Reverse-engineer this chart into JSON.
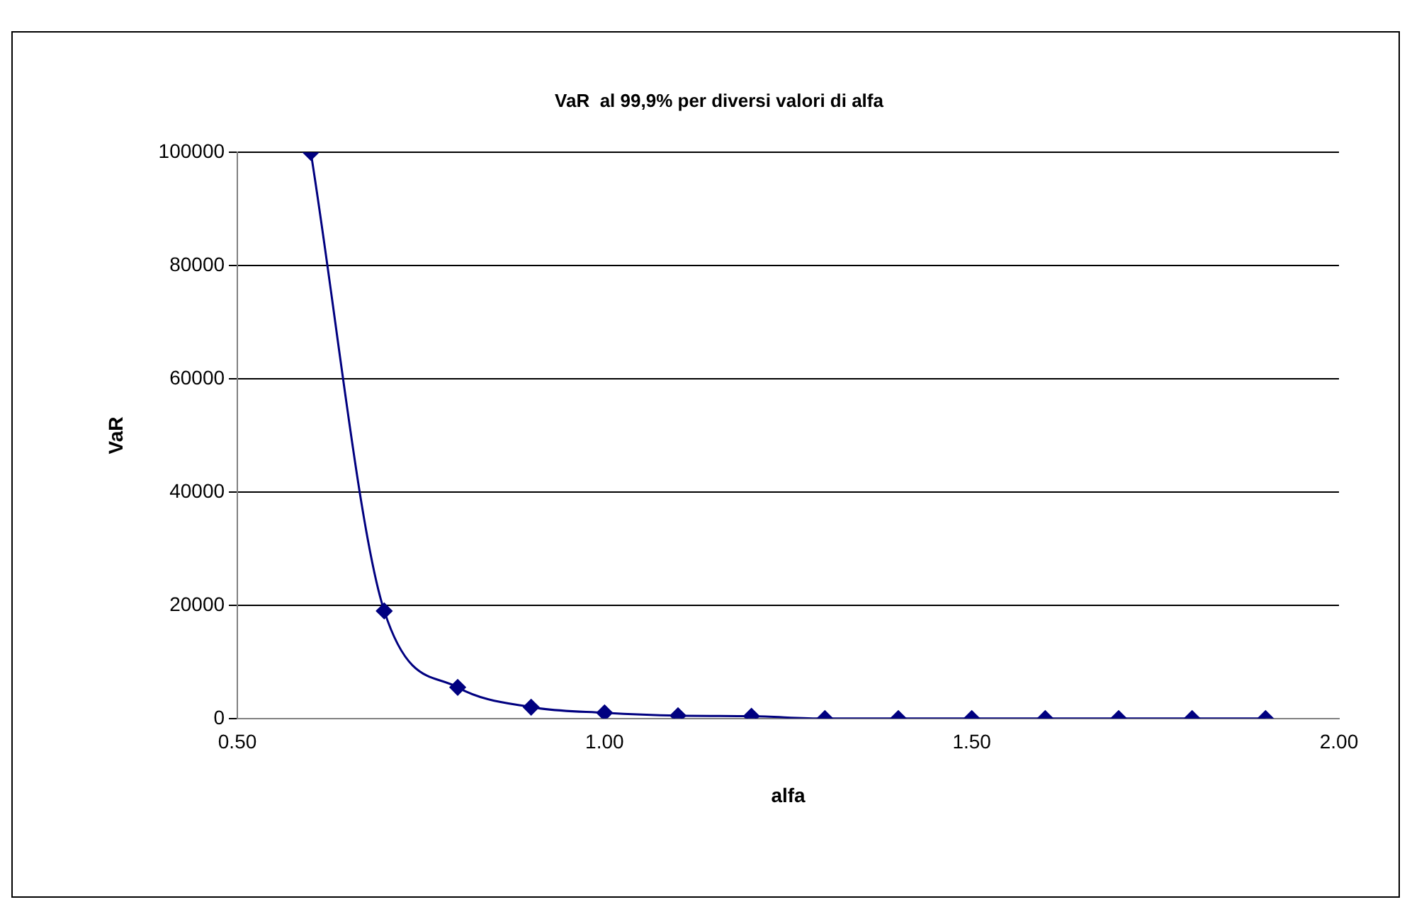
{
  "chart_data": {
    "type": "line",
    "title": "VaR  al 99,9% per diversi valori di alfa",
    "xlabel": "alfa",
    "ylabel": "VaR",
    "x": [
      0.6,
      0.7,
      0.8,
      0.9,
      1.0,
      1.1,
      1.2,
      1.3,
      1.4,
      1.5,
      1.6,
      1.7,
      1.8,
      1.9
    ],
    "series": [
      {
        "color": "#000080",
        "values": [
          100000,
          19000,
          5500,
          2000,
          1000,
          500,
          400,
          0,
          0,
          0,
          0,
          0,
          0,
          0
        ]
      }
    ],
    "xlim": [
      0.5,
      2.0
    ],
    "xticks": [
      {
        "value": 0.5,
        "label": "0.50"
      },
      {
        "value": 1.0,
        "label": "1.00"
      },
      {
        "value": 1.5,
        "label": "1.50"
      },
      {
        "value": 2.0,
        "label": "2.00"
      }
    ],
    "ylim": [
      0,
      100000
    ],
    "yticks": [
      0,
      20000,
      40000,
      60000,
      80000,
      100000
    ],
    "grid": "y",
    "legend": false,
    "marker": "diamond",
    "line_style": "solid"
  }
}
